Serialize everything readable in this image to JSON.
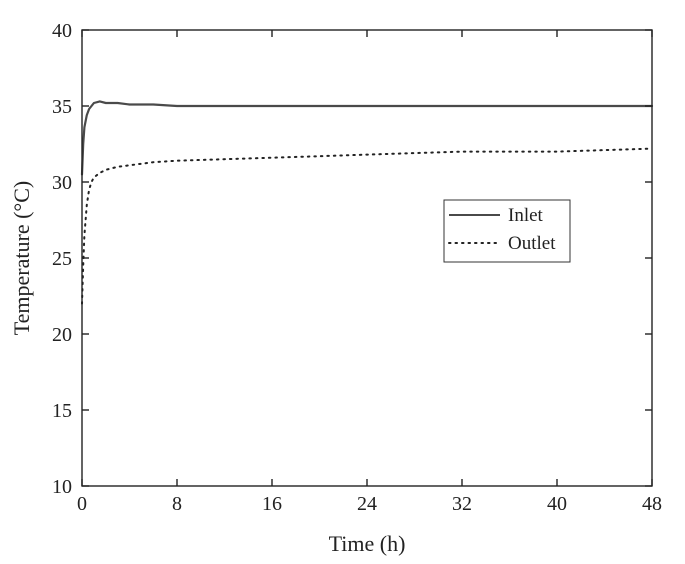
{
  "chart_data": {
    "type": "line",
    "title": "",
    "xlabel": "Time (h)",
    "ylabel": "Temperature (°C)",
    "xlim": [
      0,
      48
    ],
    "ylim": [
      10,
      40
    ],
    "x_ticks": [
      0,
      8,
      16,
      24,
      32,
      40,
      48
    ],
    "y_ticks": [
      10,
      15,
      20,
      25,
      30,
      35,
      40
    ],
    "grid": false,
    "legend_position": "center-right",
    "series": [
      {
        "name": "Inlet",
        "style": "solid",
        "color": "#4a4a4a",
        "x": [
          0,
          0.1,
          0.2,
          0.4,
          0.6,
          0.8,
          1,
          1.5,
          2,
          3,
          4,
          6,
          8,
          12,
          16,
          20,
          24,
          28,
          32,
          36,
          40,
          44,
          48
        ],
        "y": [
          30.5,
          32.5,
          33.6,
          34.4,
          34.8,
          35.0,
          35.2,
          35.3,
          35.2,
          35.2,
          35.1,
          35.1,
          35.0,
          35.0,
          35.0,
          35.0,
          35.0,
          35.0,
          35.0,
          35.0,
          35.0,
          35.0,
          35.0
        ]
      },
      {
        "name": "Outlet",
        "style": "dotted",
        "color": "#222222",
        "x": [
          0,
          0.1,
          0.2,
          0.4,
          0.6,
          0.8,
          1,
          1.5,
          2,
          3,
          4,
          6,
          8,
          12,
          16,
          20,
          24,
          28,
          32,
          36,
          40,
          44,
          48
        ],
        "y": [
          22.0,
          24.5,
          26.5,
          28.5,
          29.5,
          30.0,
          30.3,
          30.6,
          30.8,
          31.0,
          31.1,
          31.3,
          31.4,
          31.5,
          31.6,
          31.7,
          31.8,
          31.9,
          32.0,
          32.0,
          32.0,
          32.1,
          32.2
        ]
      }
    ]
  }
}
